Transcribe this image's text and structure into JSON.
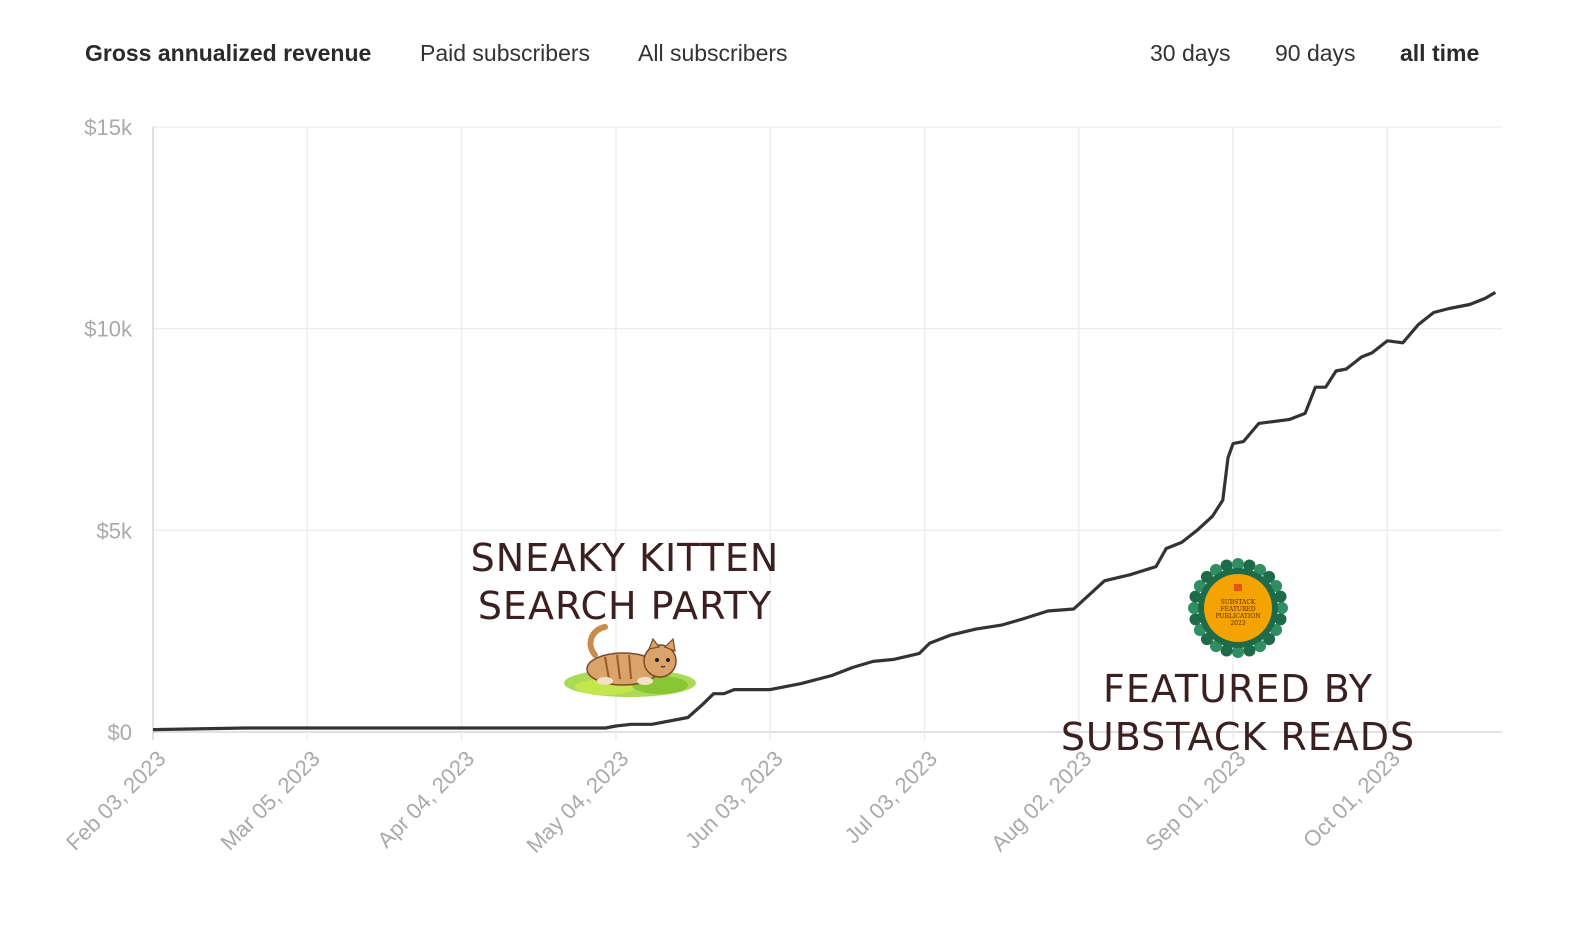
{
  "metric_tabs": [
    {
      "label": "Gross annualized revenue",
      "active": true
    },
    {
      "label": "Paid subscribers",
      "active": false
    },
    {
      "label": "All subscribers",
      "active": false
    }
  ],
  "range_tabs": [
    {
      "label": "30 days",
      "active": false
    },
    {
      "label": "90 days",
      "active": false
    },
    {
      "label": "all time",
      "active": true
    }
  ],
  "annotations": {
    "kitten_line1": "SNEAKY KITTEN",
    "kitten_line2": "SEARCH PARTY",
    "featured_line1": "FEATURED BY",
    "featured_line2": "SUBSTACK READS",
    "badge_text": "SUBSTACK FEATURED PUBLICATION 2023"
  },
  "icons": {
    "kitten": "kitten-illustration",
    "badge": "featured-badge"
  },
  "colors": {
    "line": "#333333",
    "grid": "#ececec",
    "axis_label": "#aaaaaa",
    "annotation_text": "#3a2020",
    "badge_orange": "#f4a300",
    "badge_green": "#1e6b4a"
  },
  "chart_data": {
    "type": "line",
    "title": "Gross annualized revenue",
    "xlabel": "",
    "ylabel": "",
    "y_ticks": [
      0,
      5000,
      10000,
      15000
    ],
    "y_tick_labels": [
      "$0",
      "$5k",
      "$10k",
      "$15k"
    ],
    "ylim": [
      0,
      15000
    ],
    "x_tick_labels": [
      "Feb 03, 2023",
      "Mar 05, 2023",
      "Apr 04, 2023",
      "May 04, 2023",
      "Jun 03, 2023",
      "Jul 03, 2023",
      "Aug 02, 2023",
      "Sep 01, 2023",
      "Oct 01, 2023"
    ],
    "grid": true,
    "series": [
      {
        "x": [
          "2023-02-03",
          "2023-02-21",
          "2023-03-15",
          "2023-04-10",
          "2023-05-02",
          "2023-05-04",
          "2023-05-07",
          "2023-05-11",
          "2023-05-18",
          "2023-05-21",
          "2023-05-23",
          "2023-05-25",
          "2023-05-27",
          "2023-06-03",
          "2023-06-09",
          "2023-06-15",
          "2023-06-19",
          "2023-06-23",
          "2023-06-27",
          "2023-07-02",
          "2023-07-04",
          "2023-07-08",
          "2023-07-13",
          "2023-07-18",
          "2023-07-22",
          "2023-07-27",
          "2023-08-01",
          "2023-08-04",
          "2023-08-07",
          "2023-08-12",
          "2023-08-17",
          "2023-08-19",
          "2023-08-22",
          "2023-08-25",
          "2023-08-28",
          "2023-08-30",
          "2023-08-31",
          "2023-09-01",
          "2023-09-03",
          "2023-09-06",
          "2023-09-12",
          "2023-09-15",
          "2023-09-17",
          "2023-09-19",
          "2023-09-21",
          "2023-09-23",
          "2023-09-26",
          "2023-09-28",
          "2023-10-01",
          "2023-10-04",
          "2023-10-07",
          "2023-10-10",
          "2023-10-13",
          "2023-10-17",
          "2023-10-20",
          "2023-10-22"
        ],
        "y": [
          60,
          100,
          100,
          100,
          100,
          150,
          190,
          190,
          360,
          700,
          950,
          950,
          1050,
          1050,
          1200,
          1400,
          1600,
          1750,
          1800,
          1950,
          2200,
          2400,
          2550,
          2650,
          2800,
          3000,
          3050,
          3400,
          3750,
          3900,
          4100,
          4550,
          4700,
          5000,
          5350,
          5750,
          6800,
          7150,
          7200,
          7650,
          7750,
          7900,
          8550,
          8550,
          8950,
          9000,
          9300,
          9400,
          9700,
          9650,
          10100,
          10400,
          10500,
          10600,
          10750,
          10900
        ]
      }
    ]
  }
}
